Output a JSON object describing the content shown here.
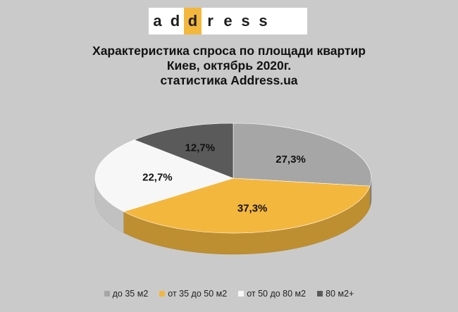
{
  "logo": {
    "letters": [
      "a",
      "d",
      "d",
      "r",
      "e",
      "s",
      "s"
    ],
    "highlight_index": 2,
    "highlight_color": "#f4b73e"
  },
  "title": {
    "line1": "Характеристика  спроса по площади квартир",
    "line2": "Киев, октябрь 2020г.",
    "line3": "статистика Address.ua"
  },
  "chart_data": {
    "type": "pie",
    "style": "3d-tilted",
    "title": "Характеристика спроса по площади квартир Киев, октябрь 2020г. статистика Address.ua",
    "categories": [
      "до 35 м2",
      "от 35 до 50 м2",
      "от 50 до 80 м2",
      "80 м2+"
    ],
    "values": [
      27.3,
      37.3,
      22.7,
      12.7
    ],
    "labels": [
      "27,3%",
      "37,3%",
      "22,7%",
      "12,7%"
    ],
    "colors": [
      "#a6a6a6",
      "#f4b73e",
      "#f7f7f7",
      "#5a5a5a"
    ],
    "legend_position": "bottom"
  }
}
